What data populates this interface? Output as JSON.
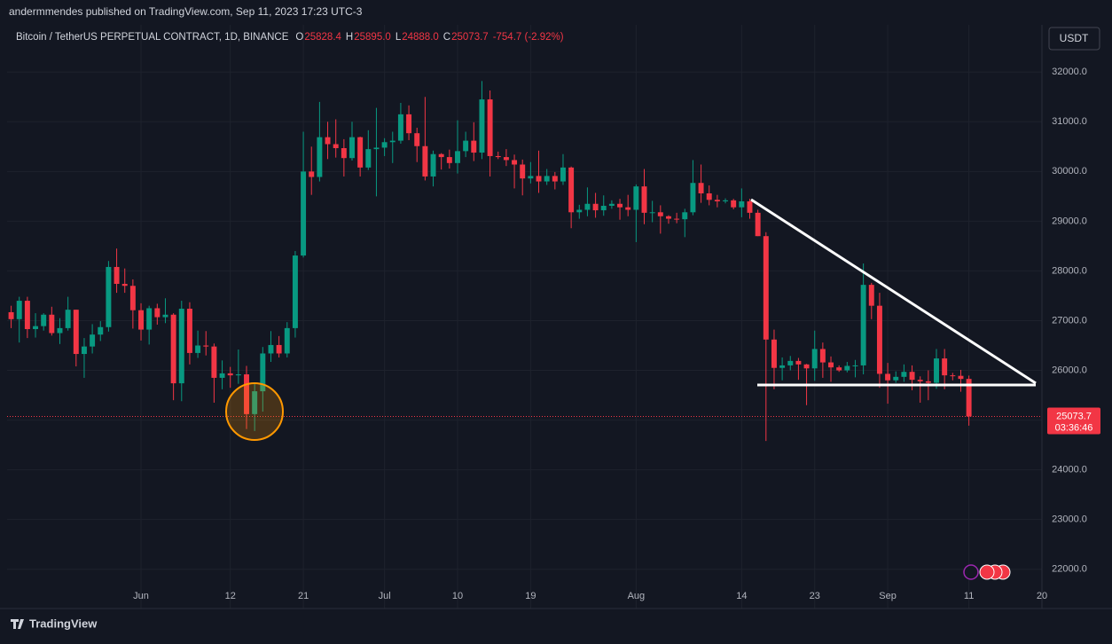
{
  "header": {
    "publisher": "andermmendes published on TradingView.com, Sep 11, 2023 17:23 UTC-3"
  },
  "chart_data": {
    "type": "candlestick",
    "title": "Bitcoin / TetherUS PERPETUAL CONTRACT, 1D, BINANCE",
    "ohlc_legend": [
      {
        "key": "O",
        "value": "25828.4"
      },
      {
        "key": "H",
        "value": "25895.0"
      },
      {
        "key": "L",
        "value": "24888.0"
      },
      {
        "key": "C",
        "value": "25073.7"
      }
    ],
    "change": "-754.7 (-2.92%)",
    "currency": "USDT",
    "last_price_label": "25073.7",
    "countdown": "03:36:46",
    "up_color": "#089981",
    "down_color": "#f23645",
    "grid": true,
    "open": [
      27170,
      27030,
      27400,
      26830,
      26890,
      27120,
      26750,
      26850,
      27220,
      26330,
      26480,
      26720,
      26870,
      28080,
      27740,
      27700,
      27210,
      26820,
      27250,
      27070,
      27120,
      25740,
      27240,
      26350,
      26500,
      26480,
      25850,
      25940,
      25900,
      25920,
      25120,
      25580,
      26340,
      26510,
      26340,
      26850,
      28310,
      30000,
      29890,
      30690,
      30550,
      30470,
      30270,
      30690,
      30080,
      30450,
      30480,
      30590,
      30620,
      31150,
      30770,
      30510,
      29900,
      30350,
      30290,
      30170,
      30410,
      30620,
      30380,
      31450,
      30310,
      30290,
      30230,
      30140,
      29860,
      29910,
      29800,
      29910,
      29800,
      30080,
      29180,
      29230,
      29350,
      29220,
      29310,
      29350,
      29280,
      29230,
      29700,
      29170,
      29180,
      29100,
      29050,
      29040,
      29180,
      29770,
      29560,
      29430,
      29400,
      29420,
      29280,
      29400,
      29170,
      28700,
      26620,
      26050,
      26100,
      26190,
      26120,
      26040,
      26430,
      26160,
      26060,
      26000,
      26090,
      26100,
      27720,
      27300,
      25930,
      25800,
      25870,
      25970,
      25810,
      25780,
      25750,
      26240,
      25900,
      25890,
      25828.4
    ],
    "high": [
      27300,
      27480,
      27480,
      27150,
      27150,
      27280,
      27050,
      27480,
      27220,
      26650,
      26930,
      26990,
      28200,
      28450,
      28050,
      27830,
      27350,
      27300,
      27340,
      27450,
      27150,
      27400,
      27370,
      26800,
      26790,
      26540,
      26200,
      26070,
      26420,
      26090,
      25750,
      26470,
      26790,
      26690,
      26970,
      28400,
      30800,
      30500,
      31400,
      31000,
      31050,
      30650,
      31000,
      30700,
      30830,
      31280,
      30670,
      30800,
      31380,
      31330,
      30880,
      31500,
      30420,
      30370,
      30440,
      31030,
      30800,
      30990,
      31820,
      31630,
      30400,
      30450,
      30340,
      30240,
      30190,
      30420,
      30050,
      29990,
      30350,
      30100,
      29330,
      29680,
      29570,
      29520,
      29420,
      29450,
      29530,
      29740,
      30050,
      29410,
      29320,
      29120,
      29170,
      29250,
      30230,
      30140,
      29720,
      29530,
      29460,
      29450,
      29660,
      29450,
      29230,
      28780,
      26820,
      26260,
      26290,
      26250,
      26130,
      26800,
      26560,
      26280,
      26100,
      26170,
      26210,
      28150,
      27760,
      27560,
      26150,
      25980,
      26120,
      26100,
      25880,
      26000,
      26430,
      26430,
      25950,
      26010,
      25895
    ],
    "low": [
      26850,
      26560,
      26650,
      26660,
      26800,
      26700,
      26530,
      26800,
      26080,
      25850,
      26340,
      26590,
      26780,
      27560,
      27560,
      26840,
      26600,
      26520,
      26920,
      26950,
      25400,
      25380,
      26120,
      26250,
      26300,
      25350,
      25620,
      25650,
      25730,
      24820,
      24780,
      25170,
      26170,
      26260,
      26260,
      26660,
      28270,
      29530,
      29800,
      30250,
      30280,
      29900,
      30220,
      29900,
      30030,
      29500,
      30310,
      30170,
      30560,
      30630,
      30190,
      29820,
      29700,
      30040,
      30060,
      29960,
      30290,
      30210,
      30250,
      29900,
      30250,
      30110,
      29660,
      29520,
      29760,
      29570,
      29730,
      29640,
      29730,
      28860,
      29050,
      29100,
      29070,
      29110,
      29250,
      29030,
      29100,
      28580,
      28940,
      28980,
      28750,
      28950,
      28960,
      28680,
      29120,
      29370,
      29320,
      29280,
      29360,
      29240,
      29080,
      29050,
      28700,
      24580,
      25620,
      25800,
      26000,
      25810,
      25300,
      25790,
      25850,
      25770,
      25970,
      25960,
      25860,
      25920,
      27030,
      25650,
      25330,
      25750,
      25770,
      25600,
      25350,
      25400,
      25630,
      25620,
      25800,
      25570,
      24888
    ],
    "close": [
      27030,
      27400,
      26830,
      26890,
      27120,
      26750,
      26850,
      27220,
      26330,
      26480,
      26720,
      26870,
      28080,
      27740,
      27700,
      27210,
      26820,
      27250,
      27070,
      27120,
      25740,
      27240,
      26350,
      26500,
      26480,
      25850,
      25940,
      25900,
      25920,
      25120,
      25580,
      26340,
      26510,
      26340,
      26850,
      28310,
      30000,
      29890,
      30690,
      30550,
      30470,
      30270,
      30690,
      30080,
      30450,
      30480,
      30590,
      30620,
      31150,
      30770,
      30510,
      29900,
      30350,
      30290,
      30170,
      30410,
      30620,
      30380,
      31450,
      30310,
      30290,
      30230,
      30140,
      29860,
      29910,
      29800,
      29910,
      29800,
      30080,
      29180,
      29230,
      29350,
      29220,
      29310,
      29350,
      29280,
      29230,
      29700,
      29170,
      29180,
      29100,
      29050,
      29040,
      29180,
      29770,
      29560,
      29430,
      29400,
      29420,
      29280,
      29400,
      29170,
      28700,
      26620,
      26050,
      26100,
      26190,
      26120,
      26040,
      26430,
      26160,
      26060,
      26000,
      26090,
      26100,
      27720,
      27300,
      25930,
      25800,
      25870,
      25970,
      25810,
      25780,
      25750,
      26240,
      25900,
      25890,
      25828.4,
      25073.7
    ],
    "xlim": [
      -0.5,
      127
    ],
    "xticks": [
      {
        "value": 16,
        "label": "Jun"
      },
      {
        "value": 27,
        "label": "12"
      },
      {
        "value": 36,
        "label": "21"
      },
      {
        "value": 46,
        "label": "Jul"
      },
      {
        "value": 55,
        "label": "10"
      },
      {
        "value": 64,
        "label": "19"
      },
      {
        "value": 77,
        "label": "Aug"
      },
      {
        "value": 90,
        "label": "14"
      },
      {
        "value": 99,
        "label": "23"
      },
      {
        "value": 108,
        "label": "Sep"
      },
      {
        "value": 118,
        "label": "11"
      },
      {
        "value": 127,
        "label": "20"
      }
    ],
    "ylim": [
      21210,
      32950
    ],
    "yticks": [
      {
        "value": 22000,
        "label": "22000.0"
      },
      {
        "value": 23000,
        "label": "23000.0"
      },
      {
        "value": 24000,
        "label": "24000.0"
      },
      {
        "value": 25000,
        "label": "25000.0"
      },
      {
        "value": 26000,
        "label": "26000.0"
      },
      {
        "value": 27000,
        "label": "27000.0"
      },
      {
        "value": 28000,
        "label": "28000.0"
      },
      {
        "value": 29000,
        "label": "29000.0"
      },
      {
        "value": 30000,
        "label": "30000.0"
      },
      {
        "value": 31000,
        "label": "31000.0"
      },
      {
        "value": 32000,
        "label": "32000.0"
      }
    ]
  },
  "footer": {
    "brand": "TradingView"
  }
}
